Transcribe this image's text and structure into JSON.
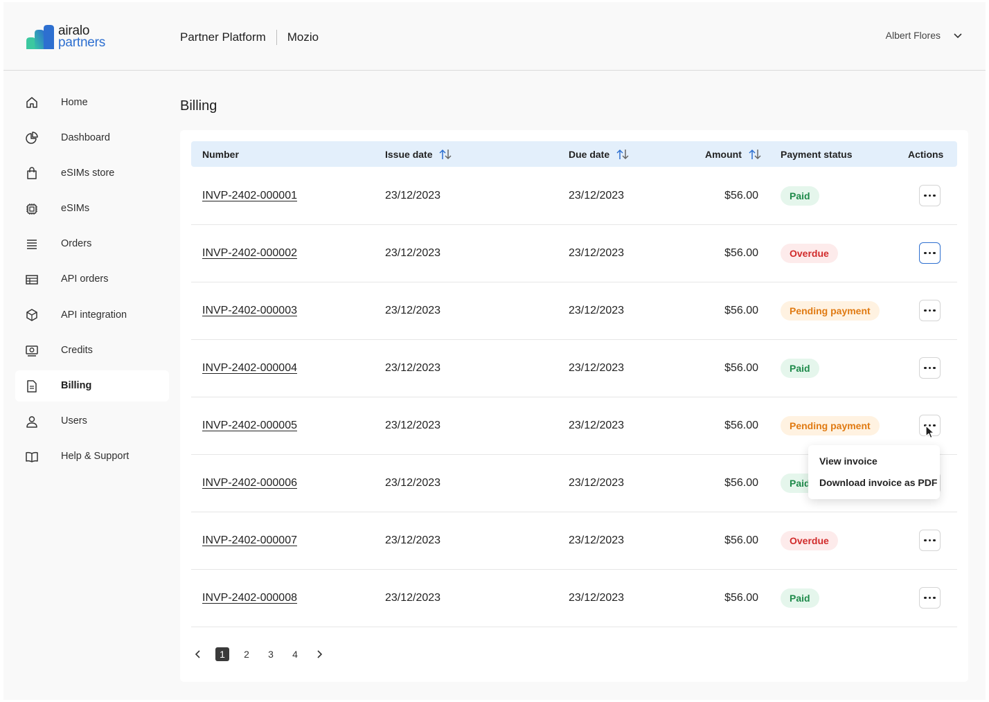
{
  "brand": {
    "line1": "airalo",
    "line2": "partners",
    "accent": "#2d6fd0"
  },
  "header": {
    "platform": "Partner Platform",
    "company": "Mozio",
    "user_name": "Albert Flores"
  },
  "sidebar": {
    "items": [
      {
        "label": "Home",
        "icon": "home-icon"
      },
      {
        "label": "Dashboard",
        "icon": "pie-chart-icon"
      },
      {
        "label": "eSIMs store",
        "icon": "shopping-bag-icon"
      },
      {
        "label": "eSIMs",
        "icon": "chip-icon"
      },
      {
        "label": "Orders",
        "icon": "list-icon"
      },
      {
        "label": "API orders",
        "icon": "table-icon"
      },
      {
        "label": "API integration",
        "icon": "cube-icon"
      },
      {
        "label": "Credits",
        "icon": "credits-icon"
      },
      {
        "label": "Billing",
        "icon": "document-icon",
        "active": true
      },
      {
        "label": "Users",
        "icon": "user-icon"
      },
      {
        "label": "Help & Support",
        "icon": "book-icon"
      }
    ]
  },
  "page": {
    "title": "Billing"
  },
  "table": {
    "columns": {
      "number": "Number",
      "issue_date": "Issue date",
      "due_date": "Due date",
      "amount": "Amount",
      "payment_status": "Payment status",
      "actions": "Actions"
    },
    "rows": [
      {
        "number": "INVP-2402-000001",
        "issue_date": "23/12/2023",
        "due_date": "23/12/2023",
        "amount": "$56.00",
        "status": "Paid",
        "status_type": "paid"
      },
      {
        "number": "INVP-2402-000002",
        "issue_date": "23/12/2023",
        "due_date": "23/12/2023",
        "amount": "$56.00",
        "status": "Overdue",
        "status_type": "overdue"
      },
      {
        "number": "INVP-2402-000003",
        "issue_date": "23/12/2023",
        "due_date": "23/12/2023",
        "amount": "$56.00",
        "status": "Pending payment",
        "status_type": "pending"
      },
      {
        "number": "INVP-2402-000004",
        "issue_date": "23/12/2023",
        "due_date": "23/12/2023",
        "amount": "$56.00",
        "status": "Paid",
        "status_type": "paid"
      },
      {
        "number": "INVP-2402-000005",
        "issue_date": "23/12/2023",
        "due_date": "23/12/2023",
        "amount": "$56.00",
        "status": "Pending payment",
        "status_type": "pending"
      },
      {
        "number": "INVP-2402-000006",
        "issue_date": "23/12/2023",
        "due_date": "23/12/2023",
        "amount": "$56.00",
        "status": "Paid",
        "status_type": "paid"
      },
      {
        "number": "INVP-2402-000007",
        "issue_date": "23/12/2023",
        "due_date": "23/12/2023",
        "amount": "$56.00",
        "status": "Overdue",
        "status_type": "overdue"
      },
      {
        "number": "INVP-2402-000008",
        "issue_date": "23/12/2023",
        "due_date": "23/12/2023",
        "amount": "$56.00",
        "status": "Paid",
        "status_type": "paid"
      }
    ]
  },
  "action_menu": {
    "items": [
      "View invoice",
      "Download invoice as PDF"
    ]
  },
  "pagination": {
    "pages": [
      "1",
      "2",
      "3",
      "4"
    ],
    "current": "1"
  },
  "colors": {
    "paid": "#1e8a4a",
    "overdue": "#d12b2b",
    "pending": "#e07a12",
    "header_row": "#e3effb"
  }
}
